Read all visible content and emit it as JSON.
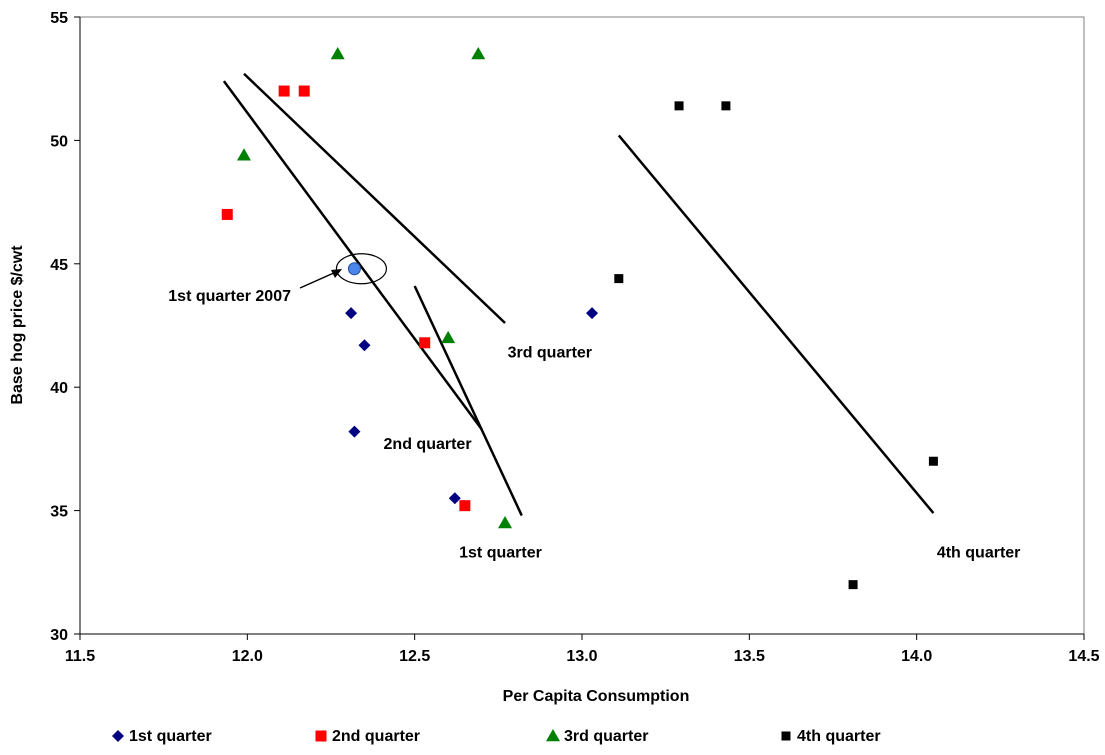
{
  "chart_data": {
    "type": "scatter",
    "xlabel": "Per Capita Consumption",
    "ylabel": "Base hog price $/cwt",
    "xlim": [
      11.5,
      14.5
    ],
    "ylim": [
      30,
      55
    ],
    "xticks": [
      "11.5",
      "12.0",
      "12.5",
      "13.0",
      "13.5",
      "14.0",
      "14.5"
    ],
    "yticks": [
      "30",
      "35",
      "40",
      "45",
      "50",
      "55"
    ],
    "grid": false,
    "legend_placement": "bottom",
    "series": [
      {
        "name": "1st quarter",
        "marker": "diamond",
        "color": "#000080",
        "points": [
          [
            12.31,
            43.0
          ],
          [
            12.35,
            41.7
          ],
          [
            12.32,
            38.2
          ],
          [
            12.62,
            35.5
          ],
          [
            13.03,
            43.0
          ]
        ]
      },
      {
        "name": "2nd quarter",
        "marker": "square",
        "color": "#ff0000",
        "points": [
          [
            11.94,
            47.0
          ],
          [
            12.11,
            52.0
          ],
          [
            12.17,
            52.0
          ],
          [
            12.53,
            41.8
          ],
          [
            12.65,
            35.2
          ]
        ]
      },
      {
        "name": "3rd quarter",
        "marker": "triangle",
        "color": "#008000",
        "points": [
          [
            11.99,
            49.4
          ],
          [
            12.27,
            53.5
          ],
          [
            12.69,
            53.5
          ],
          [
            12.6,
            42.0
          ],
          [
            12.77,
            34.5
          ]
        ]
      },
      {
        "name": "4th quarter",
        "marker": "square-small",
        "color": "#000000",
        "points": [
          [
            13.29,
            51.4
          ],
          [
            13.43,
            51.4
          ],
          [
            13.11,
            44.4
          ],
          [
            14.05,
            37.0
          ],
          [
            13.81,
            32.0
          ]
        ]
      }
    ],
    "highlight": {
      "label": "1st quarter 2007",
      "point": [
        12.32,
        44.8
      ],
      "color": "#4a86e8"
    },
    "trend_lines": [
      {
        "label": "1st quarter",
        "from": [
          12.5,
          44.1
        ],
        "to": [
          12.82,
          34.8
        ]
      },
      {
        "label": "2nd quarter",
        "from": [
          11.93,
          52.4
        ],
        "to": [
          12.7,
          38.3
        ]
      },
      {
        "label": "3rd quarter",
        "from": [
          11.99,
          52.7
        ],
        "to": [
          12.77,
          42.6
        ]
      },
      {
        "label": "4th quarter",
        "from": [
          13.11,
          50.2
        ],
        "to": [
          14.05,
          34.9
        ]
      }
    ],
    "annotations": [
      {
        "text": "1st quarter",
        "at": [
          12.88,
          33.1
        ]
      },
      {
        "text": "2nd quarter",
        "at": [
          12.67,
          37.5
        ]
      },
      {
        "text": "3rd quarter",
        "at": [
          13.03,
          41.2
        ]
      },
      {
        "text": "4th quarter",
        "at": [
          14.31,
          33.1
        ]
      }
    ]
  }
}
